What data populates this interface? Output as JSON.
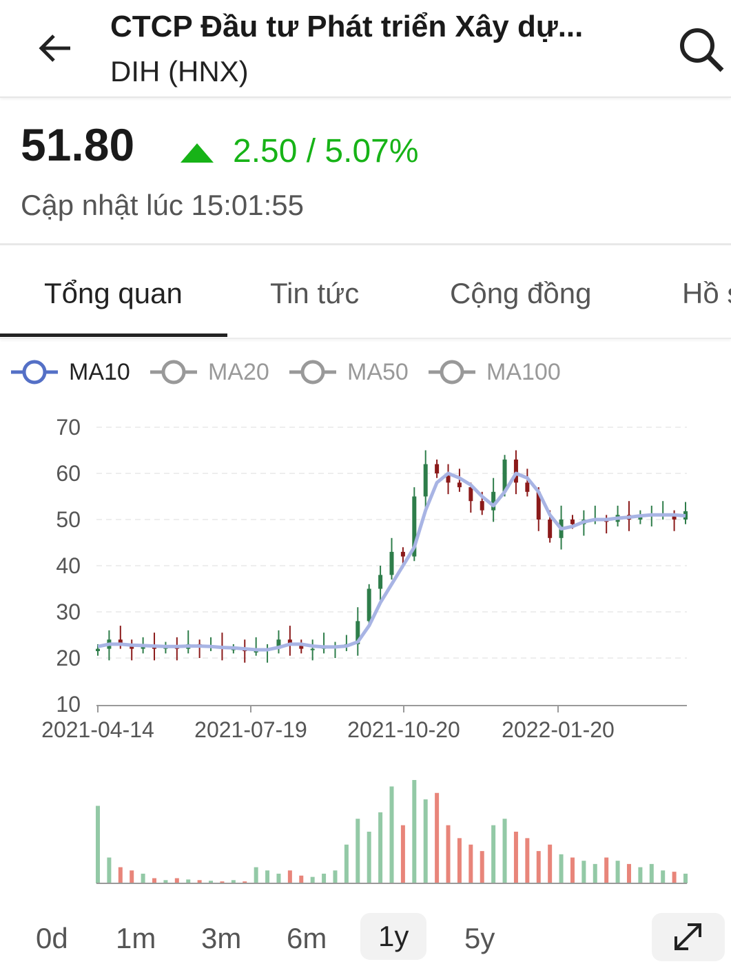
{
  "header": {
    "title": "CTCP Đầu tư Phát triển Xây dự...",
    "subtitle": "DIH (HNX)",
    "back_icon": "arrow-left-icon",
    "search_icon": "search-icon"
  },
  "quote": {
    "price": "51.80",
    "change": "2.50 / 5.07%",
    "direction": "up",
    "updated": "Cập nhật lúc 15:01:55",
    "up_color": "#17b317"
  },
  "tabs": [
    {
      "label": "Tổng quan",
      "active": true
    },
    {
      "label": "Tin tức"
    },
    {
      "label": "Cộng đồng"
    },
    {
      "label": "Hồ s"
    }
  ],
  "legend": [
    {
      "label": "MA10",
      "active": true,
      "color": "#5470c6"
    },
    {
      "label": "MA20",
      "active": false
    },
    {
      "label": "MA50",
      "active": false
    },
    {
      "label": "MA100",
      "active": false
    }
  ],
  "chart_data": {
    "type": "candlestick",
    "ylim": [
      10,
      70
    ],
    "yticks": [
      "70",
      "60",
      "50",
      "40",
      "30",
      "20",
      "10"
    ],
    "xticks": [
      "2021-04-14",
      "2021-07-19",
      "2021-10-20",
      "2022-01-20"
    ],
    "close": [
      22,
      24,
      23,
      22,
      22.5,
      22,
      22.5,
      22,
      23,
      22.5,
      22.5,
      22,
      22,
      21.5,
      21.5,
      22,
      24,
      23,
      22,
      22,
      22.5,
      22.5,
      23,
      28,
      35,
      38,
      43,
      42,
      55,
      62,
      60,
      58,
      57,
      54,
      52,
      56,
      63,
      58,
      56,
      50,
      46,
      50,
      49,
      50,
      50,
      49.5,
      51,
      50,
      51,
      51,
      51,
      50,
      51.8
    ],
    "ma10": [
      22.5,
      23,
      23,
      22.8,
      22.7,
      22.6,
      22.5,
      22.5,
      22.6,
      22.6,
      22.5,
      22.3,
      22.2,
      22,
      21.8,
      21.8,
      22.3,
      23,
      23,
      22.6,
      22.4,
      22.4,
      22.6,
      23.5,
      27,
      32,
      36,
      40,
      44,
      52,
      58,
      60,
      59,
      57.5,
      55,
      53,
      56,
      60,
      59,
      56,
      51,
      48,
      48.5,
      49.5,
      50,
      50,
      50.3,
      50.5,
      50.8,
      51,
      51,
      51,
      50.8
    ],
    "volume": [
      120,
      40,
      25,
      20,
      15,
      8,
      5,
      8,
      6,
      5,
      4,
      3,
      5,
      3,
      25,
      20,
      15,
      20,
      12,
      10,
      15,
      20,
      60,
      100,
      80,
      110,
      150,
      90,
      160,
      130,
      140,
      90,
      70,
      60,
      50,
      90,
      100,
      80,
      70,
      50,
      60,
      45,
      40,
      35,
      30,
      40,
      35,
      30,
      25,
      30,
      20,
      18,
      15
    ],
    "up_color": "#2e7d4a",
    "down_color": "#8b1a1a",
    "ma_color": "#a8b4e4",
    "vol_up_color": "#93c9a6",
    "vol_down_color": "#e8857a"
  },
  "periods": [
    {
      "label": "0d"
    },
    {
      "label": "1m"
    },
    {
      "label": "3m"
    },
    {
      "label": "6m"
    },
    {
      "label": "1y",
      "selected": true
    },
    {
      "label": "5y"
    }
  ],
  "expand_icon": "expand-icon"
}
